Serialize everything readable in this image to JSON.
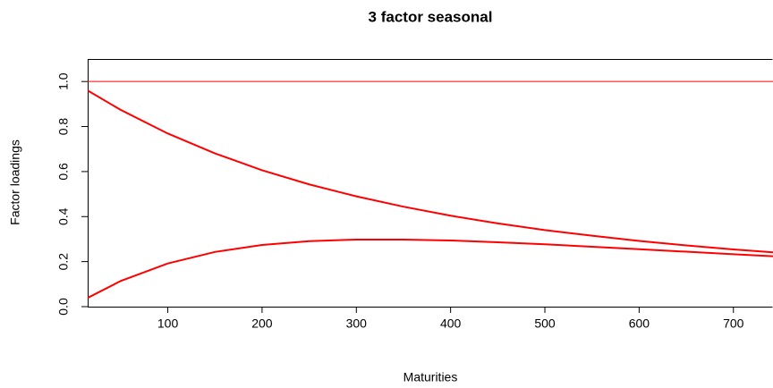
{
  "chart_data": {
    "type": "line",
    "title": "3 factor seasonal",
    "x_label": "Maturities",
    "y_label": "Factor loadings",
    "x": [
      15,
      50,
      100,
      150,
      200,
      250,
      300,
      350,
      400,
      450,
      500,
      550,
      600,
      650,
      700,
      742
    ],
    "series": [
      {
        "color": "#ff0000",
        "values": [
          1,
          1,
          1,
          1,
          1,
          1,
          1,
          1,
          1,
          1,
          1,
          1,
          1,
          1,
          1,
          1
        ]
      },
      {
        "color": "#ff0000",
        "values": [
          0.96,
          0.874,
          0.769,
          0.681,
          0.606,
          0.543,
          0.49,
          0.444,
          0.404,
          0.37,
          0.34,
          0.315,
          0.292,
          0.272,
          0.254,
          0.241
        ]
      },
      {
        "color": "#ff0000",
        "values": [
          0.039,
          0.114,
          0.192,
          0.243,
          0.274,
          0.291,
          0.298,
          0.298,
          0.294,
          0.286,
          0.277,
          0.266,
          0.255,
          0.244,
          0.233,
          0.224
        ]
      }
    ],
    "xlim": [
      15,
      742
    ],
    "ylim": [
      0,
      1.1
    ],
    "xticks": [
      100,
      200,
      300,
      400,
      500,
      600,
      700
    ],
    "yticks": [
      {
        "value": 0,
        "label": "0.0"
      },
      0.2,
      0.4,
      0.6,
      0.8,
      {
        "value": 1,
        "label": "1.0"
      }
    ]
  }
}
